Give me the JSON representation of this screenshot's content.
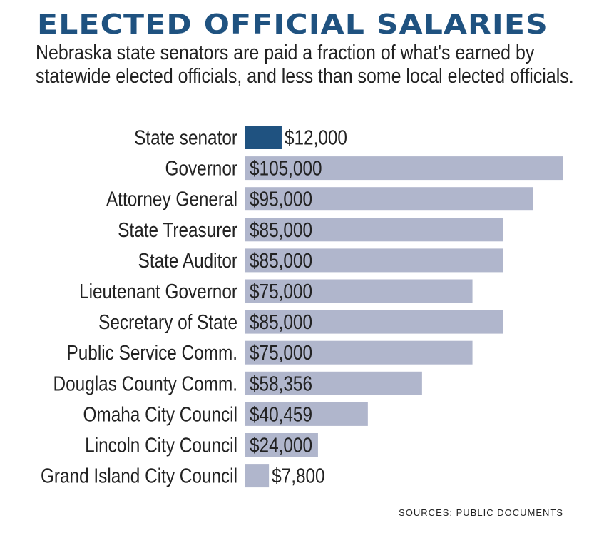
{
  "chart_data": {
    "type": "bar",
    "orientation": "horizontal",
    "title": "ELECTED OFFICIAL SALARIES",
    "subtitle": "Nebraska state senators are paid a fraction of what's earned by statewide elected officials, and less than some local elected officials.",
    "categories": [
      "State senator",
      "Governor",
      "Attorney General",
      "State Treasurer",
      "State Auditor",
      "Lieutenant Governor",
      "Secretary of State",
      "Public Service Comm.",
      "Douglas County Comm.",
      "Omaha City Council",
      "Lincoln City Council",
      "Grand Island City Council"
    ],
    "values": [
      12000,
      105000,
      95000,
      85000,
      85000,
      75000,
      85000,
      75000,
      58356,
      40459,
      24000,
      7800
    ],
    "value_labels": [
      "$12,000",
      "$105,000",
      "$95,000",
      "$85,000",
      "$85,000",
      "$75,000",
      "$85,000",
      "$75,000",
      "$58,356",
      "$40,459",
      "$24,000",
      "$7,800"
    ],
    "colors": {
      "highlight": "#1f5280",
      "default": "#b0b6cc",
      "title": "#1f5280"
    },
    "highlight_category": "State senator",
    "xlim": [
      0,
      105000
    ],
    "grid": false,
    "source": "SOURCES: PUBLIC DOCUMENTS"
  }
}
